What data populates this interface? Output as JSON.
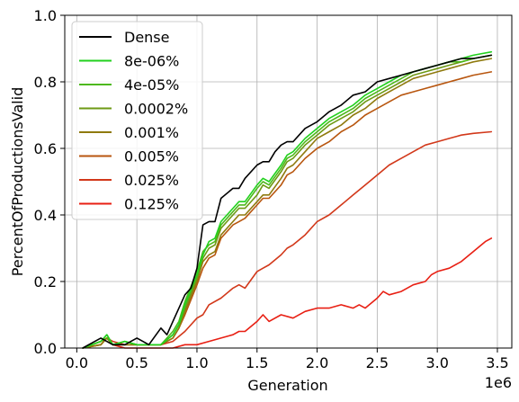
{
  "chart_data": {
    "type": "line",
    "title": "",
    "xlabel": "Generation",
    "ylabel": "PercentOfProductionsValid",
    "x_offset_label": "1e6",
    "xlim": [
      -0.1,
      3.62
    ],
    "ylim": [
      0,
      1.0
    ],
    "x_ticks": [
      0.0,
      0.5,
      1.0,
      1.5,
      2.0,
      2.5,
      3.0,
      3.5
    ],
    "x_tick_labels": [
      "0.0",
      "0.5",
      "1.0",
      "1.5",
      "2.0",
      "2.5",
      "3.0",
      "3.5"
    ],
    "y_ticks": [
      0.0,
      0.2,
      0.4,
      0.6,
      0.8,
      1.0
    ],
    "y_tick_labels": [
      "0.0",
      "0.2",
      "0.4",
      "0.6",
      "0.8",
      "1.0"
    ],
    "grid": true,
    "legend_position": "top-left",
    "series": [
      {
        "name": "Dense",
        "color": "#000000",
        "x": [
          0.05,
          0.2,
          0.3,
          0.4,
          0.5,
          0.55,
          0.6,
          0.7,
          0.75,
          0.8,
          0.9,
          0.95,
          1.0,
          1.05,
          1.1,
          1.15,
          1.2,
          1.3,
          1.35,
          1.4,
          1.5,
          1.55,
          1.6,
          1.65,
          1.7,
          1.75,
          1.8,
          1.85,
          1.9,
          2.0,
          2.1,
          2.2,
          2.3,
          2.4,
          2.5,
          2.6,
          2.7,
          2.8,
          2.9,
          3.0,
          3.1,
          3.2,
          3.3,
          3.45
        ],
        "y": [
          0.0,
          0.03,
          0.01,
          0.01,
          0.03,
          0.02,
          0.01,
          0.06,
          0.04,
          0.08,
          0.16,
          0.18,
          0.24,
          0.37,
          0.38,
          0.38,
          0.45,
          0.48,
          0.48,
          0.51,
          0.55,
          0.56,
          0.56,
          0.59,
          0.61,
          0.62,
          0.62,
          0.64,
          0.66,
          0.68,
          0.71,
          0.73,
          0.76,
          0.77,
          0.8,
          0.81,
          0.82,
          0.83,
          0.84,
          0.85,
          0.86,
          0.87,
          0.87,
          0.88
        ]
      },
      {
        "name": "8e-06%",
        "color": "#22d11e",
        "x": [
          0.05,
          0.2,
          0.25,
          0.3,
          0.4,
          0.5,
          0.6,
          0.7,
          0.8,
          0.85,
          0.9,
          1.0,
          1.05,
          1.1,
          1.15,
          1.2,
          1.3,
          1.35,
          1.4,
          1.5,
          1.55,
          1.6,
          1.7,
          1.75,
          1.8,
          1.9,
          2.0,
          2.1,
          2.2,
          2.3,
          2.4,
          2.5,
          2.6,
          2.7,
          2.8,
          2.9,
          3.0,
          3.1,
          3.2,
          3.3,
          3.45
        ],
        "y": [
          0.0,
          0.02,
          0.04,
          0.01,
          0.02,
          0.01,
          0.01,
          0.01,
          0.04,
          0.07,
          0.13,
          0.22,
          0.28,
          0.32,
          0.33,
          0.38,
          0.42,
          0.44,
          0.44,
          0.49,
          0.51,
          0.5,
          0.55,
          0.58,
          0.59,
          0.63,
          0.66,
          0.69,
          0.71,
          0.73,
          0.76,
          0.78,
          0.8,
          0.82,
          0.83,
          0.84,
          0.85,
          0.86,
          0.87,
          0.88,
          0.89
        ]
      },
      {
        "name": "4e-05%",
        "color": "#4db81b",
        "x": [
          0.05,
          0.2,
          0.25,
          0.3,
          0.4,
          0.5,
          0.6,
          0.7,
          0.8,
          0.85,
          0.9,
          1.0,
          1.05,
          1.1,
          1.15,
          1.2,
          1.3,
          1.35,
          1.4,
          1.5,
          1.55,
          1.6,
          1.7,
          1.75,
          1.8,
          1.9,
          2.0,
          2.1,
          2.2,
          2.3,
          2.4,
          2.5,
          2.6,
          2.7,
          2.8,
          2.9,
          3.0,
          3.1,
          3.2,
          3.3,
          3.45
        ],
        "y": [
          0.0,
          0.02,
          0.04,
          0.01,
          0.02,
          0.01,
          0.01,
          0.01,
          0.05,
          0.08,
          0.14,
          0.23,
          0.29,
          0.31,
          0.32,
          0.37,
          0.41,
          0.43,
          0.43,
          0.48,
          0.5,
          0.49,
          0.54,
          0.57,
          0.58,
          0.62,
          0.65,
          0.68,
          0.7,
          0.72,
          0.75,
          0.77,
          0.79,
          0.81,
          0.83,
          0.84,
          0.85,
          0.86,
          0.86,
          0.87,
          0.88
        ]
      },
      {
        "name": "0.0002%",
        "color": "#6e9a15",
        "x": [
          0.05,
          0.2,
          0.25,
          0.3,
          0.4,
          0.5,
          0.6,
          0.7,
          0.8,
          0.85,
          0.9,
          1.0,
          1.05,
          1.1,
          1.15,
          1.2,
          1.3,
          1.35,
          1.4,
          1.5,
          1.55,
          1.6,
          1.7,
          1.75,
          1.8,
          1.9,
          2.0,
          2.1,
          2.2,
          2.3,
          2.4,
          2.5,
          2.6,
          2.7,
          2.8,
          2.9,
          3.0,
          3.1,
          3.2,
          3.3,
          3.45
        ],
        "y": [
          0.0,
          0.02,
          0.03,
          0.01,
          0.02,
          0.01,
          0.01,
          0.01,
          0.04,
          0.07,
          0.12,
          0.21,
          0.27,
          0.3,
          0.31,
          0.36,
          0.4,
          0.42,
          0.42,
          0.46,
          0.49,
          0.48,
          0.53,
          0.56,
          0.57,
          0.61,
          0.64,
          0.67,
          0.69,
          0.71,
          0.74,
          0.76,
          0.78,
          0.8,
          0.82,
          0.83,
          0.84,
          0.85,
          0.86,
          0.87,
          0.88
        ]
      },
      {
        "name": "0.001%",
        "color": "#8f7a0e",
        "x": [
          0.05,
          0.2,
          0.25,
          0.3,
          0.4,
          0.5,
          0.6,
          0.7,
          0.8,
          0.85,
          0.9,
          1.0,
          1.05,
          1.1,
          1.15,
          1.2,
          1.3,
          1.35,
          1.4,
          1.5,
          1.55,
          1.6,
          1.7,
          1.75,
          1.8,
          1.9,
          2.0,
          2.1,
          2.2,
          2.3,
          2.4,
          2.5,
          2.6,
          2.7,
          2.8,
          2.9,
          3.0,
          3.1,
          3.2,
          3.3,
          3.45
        ],
        "y": [
          0.0,
          0.01,
          0.03,
          0.01,
          0.01,
          0.01,
          0.01,
          0.01,
          0.03,
          0.06,
          0.11,
          0.2,
          0.26,
          0.28,
          0.29,
          0.34,
          0.38,
          0.4,
          0.4,
          0.44,
          0.46,
          0.46,
          0.51,
          0.54,
          0.55,
          0.59,
          0.63,
          0.65,
          0.67,
          0.7,
          0.72,
          0.75,
          0.77,
          0.79,
          0.81,
          0.82,
          0.83,
          0.84,
          0.85,
          0.86,
          0.87
        ]
      },
      {
        "name": "0.005%",
        "color": "#b8560f",
        "x": [
          0.05,
          0.2,
          0.25,
          0.3,
          0.4,
          0.5,
          0.6,
          0.7,
          0.8,
          0.85,
          0.9,
          1.0,
          1.05,
          1.1,
          1.15,
          1.2,
          1.3,
          1.35,
          1.4,
          1.5,
          1.55,
          1.6,
          1.7,
          1.75,
          1.8,
          1.9,
          2.0,
          2.1,
          2.2,
          2.3,
          2.4,
          2.5,
          2.6,
          2.7,
          2.8,
          2.9,
          3.0,
          3.1,
          3.2,
          3.3,
          3.45
        ],
        "y": [
          0.0,
          0.01,
          0.03,
          0.01,
          0.01,
          0.01,
          0.01,
          0.01,
          0.03,
          0.06,
          0.1,
          0.19,
          0.24,
          0.27,
          0.28,
          0.33,
          0.37,
          0.38,
          0.39,
          0.43,
          0.45,
          0.45,
          0.49,
          0.52,
          0.53,
          0.57,
          0.6,
          0.62,
          0.65,
          0.67,
          0.7,
          0.72,
          0.74,
          0.76,
          0.77,
          0.78,
          0.79,
          0.8,
          0.81,
          0.82,
          0.83
        ]
      },
      {
        "name": "0.025%",
        "color": "#d2381a",
        "x": [
          0.05,
          0.2,
          0.25,
          0.3,
          0.4,
          0.5,
          0.6,
          0.7,
          0.8,
          0.9,
          1.0,
          1.05,
          1.1,
          1.2,
          1.3,
          1.35,
          1.4,
          1.5,
          1.55,
          1.6,
          1.7,
          1.75,
          1.8,
          1.9,
          2.0,
          2.1,
          2.2,
          2.3,
          2.4,
          2.5,
          2.6,
          2.7,
          2.8,
          2.9,
          3.0,
          3.1,
          3.2,
          3.3,
          3.45
        ],
        "y": [
          0.0,
          0.01,
          0.03,
          0.02,
          0.01,
          0.01,
          0.01,
          0.01,
          0.02,
          0.05,
          0.09,
          0.1,
          0.13,
          0.15,
          0.18,
          0.19,
          0.18,
          0.23,
          0.24,
          0.25,
          0.28,
          0.3,
          0.31,
          0.34,
          0.38,
          0.4,
          0.43,
          0.46,
          0.49,
          0.52,
          0.55,
          0.57,
          0.59,
          0.61,
          0.62,
          0.63,
          0.64,
          0.645,
          0.65
        ]
      },
      {
        "name": "0.125%",
        "color": "#e81f13",
        "x": [
          0.05,
          0.2,
          0.25,
          0.3,
          0.4,
          0.5,
          0.6,
          0.7,
          0.8,
          0.9,
          1.0,
          1.1,
          1.2,
          1.3,
          1.35,
          1.4,
          1.5,
          1.55,
          1.6,
          1.7,
          1.8,
          1.9,
          2.0,
          2.1,
          2.2,
          2.3,
          2.35,
          2.4,
          2.5,
          2.55,
          2.6,
          2.7,
          2.8,
          2.9,
          2.95,
          3.0,
          3.1,
          3.2,
          3.3,
          3.4,
          3.45
        ],
        "y": [
          0.0,
          0.02,
          0.03,
          0.01,
          0.0,
          0.0,
          0.0,
          0.0,
          0.0,
          0.01,
          0.01,
          0.02,
          0.03,
          0.04,
          0.05,
          0.05,
          0.08,
          0.1,
          0.08,
          0.1,
          0.09,
          0.11,
          0.12,
          0.12,
          0.13,
          0.12,
          0.13,
          0.12,
          0.15,
          0.17,
          0.16,
          0.17,
          0.19,
          0.2,
          0.22,
          0.23,
          0.24,
          0.26,
          0.29,
          0.32,
          0.33
        ]
      }
    ]
  }
}
